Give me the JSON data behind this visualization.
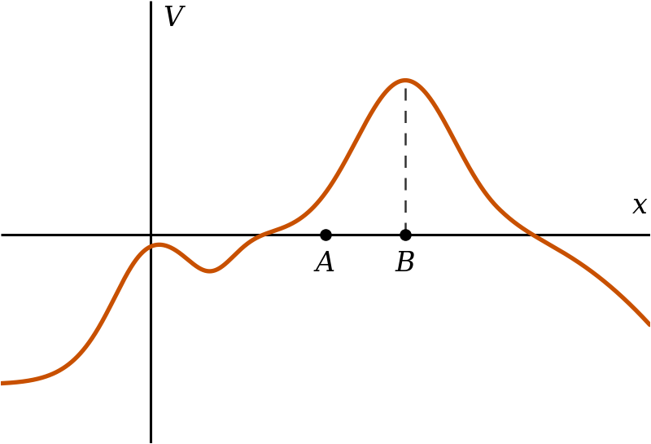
{
  "curve_color": "#C85000",
  "curve_linewidth": 3.8,
  "axis_color": "#000000",
  "axis_linewidth": 2.2,
  "background_color": "#ffffff",
  "point_A_x": 3.5,
  "point_B_x": 5.1,
  "dashed_line_color": "#333333",
  "point_color": "#000000",
  "point_size": 90,
  "label_A": "A",
  "label_B": "B",
  "label_V": "V",
  "label_x": "x",
  "font_size": 24,
  "xlim": [
    -3.0,
    10.0
  ],
  "ylim": [
    -2.5,
    2.8
  ],
  "figsize": [
    8.0,
    5.45
  ],
  "dpi": 100,
  "y_axis_x": 0.0,
  "x_axis_y": 0.0
}
